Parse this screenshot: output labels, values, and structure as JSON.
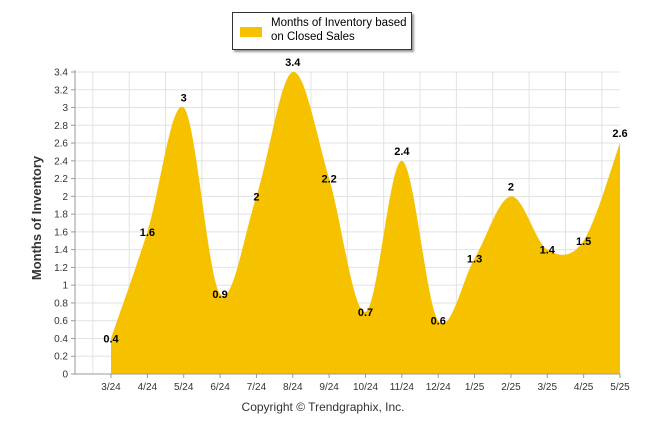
{
  "legend": {
    "label": "Months of Inventory based on Closed Sales"
  },
  "footer": {
    "copyright": "Copyright © Trendgraphix, Inc."
  },
  "colors": {
    "area_fill": "#f6c200",
    "grid": "#e2e2e2",
    "axis": "#999999",
    "text": "#333333"
  },
  "chart_data": {
    "type": "area",
    "categories": [
      "3/24",
      "4/24",
      "5/24",
      "6/24",
      "7/24",
      "8/24",
      "9/24",
      "10/24",
      "11/24",
      "12/24",
      "1/25",
      "2/25",
      "3/25",
      "4/25",
      "5/25"
    ],
    "series": [
      {
        "name": "Months of Inventory based on Closed Sales",
        "values": [
          0.4,
          1.6,
          3,
          0.9,
          2,
          3.4,
          2.2,
          0.7,
          2.4,
          0.6,
          1.3,
          2,
          1.4,
          1.5,
          2.6
        ]
      }
    ],
    "ylabel": "Months of Inventory",
    "xlabel": "",
    "ylim": [
      0,
      3.4
    ],
    "yticks": [
      "0",
      "0.2",
      "0.4",
      "0.6",
      "0.8",
      "1",
      "1.2",
      "1.4",
      "1.6",
      "1.8",
      "2",
      "2.2",
      "2.4",
      "2.6",
      "2.8",
      "3",
      "3.2",
      "3.4"
    ],
    "data_labels": [
      "0.4",
      "1.6",
      "3",
      "0.9",
      "2",
      "3.4",
      "2.2",
      "0.7",
      "2.4",
      "0.6",
      "1.3",
      "2",
      "1.4",
      "1.5",
      "2.6"
    ],
    "grid": true,
    "smooth": true,
    "legend_position": "top-center"
  }
}
